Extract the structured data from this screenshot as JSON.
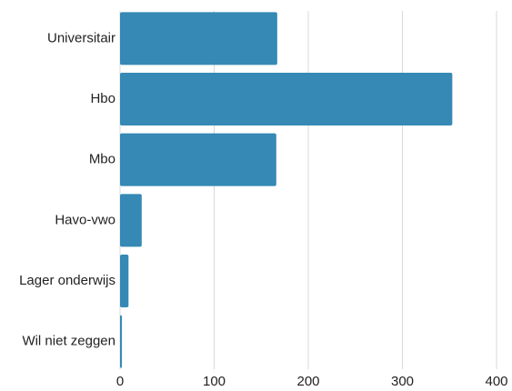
{
  "chart_data": {
    "type": "bar",
    "orientation": "horizontal",
    "categories": [
      "Universitair",
      "Hbo",
      "Mbo",
      "Havo-vwo",
      "Lager onderwijs",
      "Wil niet zeggen"
    ],
    "values": [
      167,
      353,
      166,
      23,
      9,
      2
    ],
    "color": "#3589b4",
    "xlim": [
      0,
      400
    ],
    "xticks": [
      0,
      100,
      200,
      300,
      400
    ],
    "grid": true
  }
}
